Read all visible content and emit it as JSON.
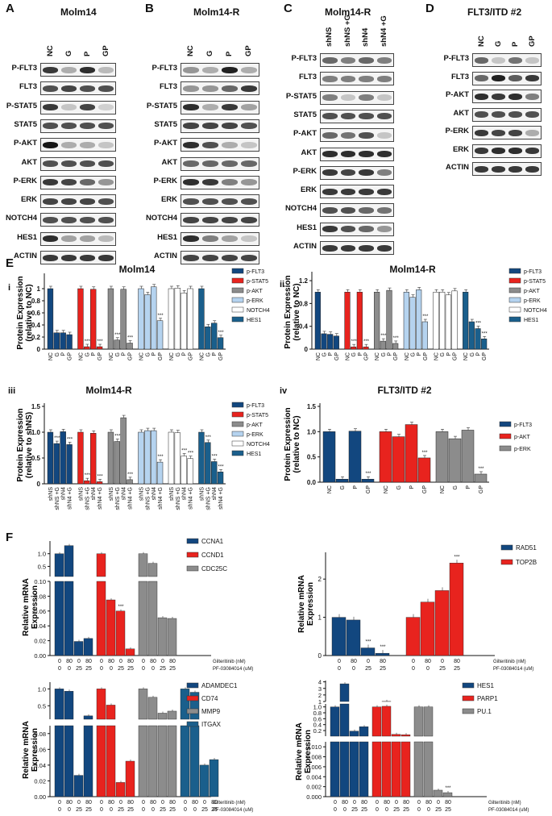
{
  "blots": [
    {
      "id": "A",
      "letter": "A",
      "title": "Molm14",
      "lanes": [
        "NC",
        "G",
        "P",
        "GP"
      ],
      "rows": [
        {
          "label": "P-FLT3",
          "int": [
            0.8,
            0.3,
            0.85,
            0.25
          ]
        },
        {
          "label": "FLT3",
          "int": [
            0.7,
            0.75,
            0.7,
            0.7
          ]
        },
        {
          "label": "P-STAT5",
          "int": [
            0.8,
            0.2,
            0.75,
            0.15
          ]
        },
        {
          "label": "STAT5",
          "int": [
            0.7,
            0.7,
            0.7,
            0.7
          ]
        },
        {
          "label": "P-AKT",
          "int": [
            0.95,
            0.3,
            0.3,
            0.2
          ]
        },
        {
          "label": "AKT",
          "int": [
            0.7,
            0.7,
            0.7,
            0.7
          ]
        },
        {
          "label": "P-ERK",
          "int": [
            0.8,
            0.75,
            0.6,
            0.4
          ]
        },
        {
          "label": "ERK",
          "int": [
            0.75,
            0.75,
            0.75,
            0.7
          ]
        },
        {
          "label": "NOTCH4",
          "int": [
            0.7,
            0.7,
            0.7,
            0.7
          ]
        },
        {
          "label": "HES1",
          "int": [
            0.85,
            0.35,
            0.35,
            0.25
          ]
        },
        {
          "label": "ACTIN",
          "int": [
            0.8,
            0.8,
            0.8,
            0.8
          ]
        }
      ]
    },
    {
      "id": "B",
      "letter": "B",
      "title": "Molm14-R",
      "lanes": [
        "NC",
        "G",
        "P",
        "GP"
      ],
      "rows": [
        {
          "label": "P-FLT3",
          "int": [
            0.4,
            0.3,
            0.9,
            0.3
          ]
        },
        {
          "label": "FLT3",
          "int": [
            0.4,
            0.4,
            0.6,
            0.8
          ]
        },
        {
          "label": "P-STAT5",
          "int": [
            0.85,
            0.3,
            0.8,
            0.35
          ]
        },
        {
          "label": "STAT5",
          "int": [
            0.75,
            0.75,
            0.75,
            0.7
          ]
        },
        {
          "label": "P-AKT",
          "int": [
            0.85,
            0.7,
            0.3,
            0.2
          ]
        },
        {
          "label": "AKT",
          "int": [
            0.6,
            0.6,
            0.6,
            0.6
          ]
        },
        {
          "label": "P-ERK",
          "int": [
            0.85,
            0.8,
            0.5,
            0.4
          ]
        },
        {
          "label": "ERK",
          "int": [
            0.7,
            0.7,
            0.7,
            0.7
          ]
        },
        {
          "label": "NOTCH4",
          "int": [
            0.75,
            0.75,
            0.75,
            0.75
          ]
        },
        {
          "label": "HES1",
          "int": [
            0.85,
            0.5,
            0.35,
            0.2
          ]
        },
        {
          "label": "ACTIN",
          "int": [
            0.75,
            0.75,
            0.75,
            0.75
          ]
        }
      ]
    },
    {
      "id": "C",
      "letter": "C",
      "title": "Molm14-R",
      "lanes": [
        "shNS",
        "shNS +G",
        "shN4",
        "shN4 +G"
      ],
      "rows": [
        {
          "label": "P-FLT3",
          "int": [
            0.6,
            0.5,
            0.6,
            0.5
          ]
        },
        {
          "label": "FLT3",
          "int": [
            0.5,
            0.5,
            0.5,
            0.5
          ]
        },
        {
          "label": "P-STAT5",
          "int": [
            0.5,
            0.2,
            0.5,
            0.2
          ]
        },
        {
          "label": "STAT5",
          "int": [
            0.7,
            0.7,
            0.7,
            0.7
          ]
        },
        {
          "label": "P-AKT",
          "int": [
            0.6,
            0.55,
            0.7,
            0.2
          ]
        },
        {
          "label": "AKT",
          "int": [
            0.85,
            0.85,
            0.85,
            0.85
          ]
        },
        {
          "label": "P-ERK",
          "int": [
            0.8,
            0.75,
            0.8,
            0.5
          ]
        },
        {
          "label": "ERK",
          "int": [
            0.8,
            0.8,
            0.8,
            0.8
          ]
        },
        {
          "label": "NOTCH4",
          "int": [
            0.7,
            0.7,
            0.6,
            0.55
          ]
        },
        {
          "label": "HES1",
          "int": [
            0.8,
            0.7,
            0.6,
            0.4
          ]
        },
        {
          "label": "ACTIN",
          "int": [
            0.8,
            0.8,
            0.8,
            0.8
          ]
        }
      ]
    },
    {
      "id": "D",
      "letter": "D",
      "title": "FLT3/ITD #2",
      "lanes": [
        "NC",
        "G",
        "P",
        "GP"
      ],
      "rows": [
        {
          "label": "P-FLT3",
          "int": [
            0.6,
            0.2,
            0.55,
            0.2
          ]
        },
        {
          "label": "FLT3",
          "int": [
            0.6,
            0.9,
            0.65,
            0.8
          ]
        },
        {
          "label": "P-AKT",
          "int": [
            0.85,
            0.8,
            0.85,
            0.5
          ]
        },
        {
          "label": "AKT",
          "int": [
            0.7,
            0.7,
            0.7,
            0.7
          ]
        },
        {
          "label": "P-ERK",
          "int": [
            0.8,
            0.75,
            0.75,
            0.3
          ]
        },
        {
          "label": "ERK",
          "int": [
            0.8,
            0.85,
            0.85,
            0.8
          ]
        },
        {
          "label": "ACTIN",
          "int": [
            0.8,
            0.8,
            0.8,
            0.8
          ]
        }
      ]
    }
  ],
  "panel_E": {
    "letter": "E"
  },
  "panel_F": {
    "letter": "F"
  },
  "chart_data": [
    {
      "id": "Ei",
      "type": "bar",
      "panel": "i",
      "title": "Molm14",
      "ylabel": "Protein Expression\n(relative to NC)",
      "ylim": [
        0,
        1.2
      ],
      "yticks": [
        "0",
        "0.2",
        "0.4",
        "0.6",
        "0.8",
        "1"
      ],
      "categories": [
        "NC",
        "G",
        "P",
        "GP"
      ],
      "series": [
        {
          "name": "p-FLT3",
          "color": "#12477f",
          "values": [
            1.0,
            0.27,
            0.27,
            0.24
          ],
          "sig": [
            0,
            0,
            0,
            0
          ]
        },
        {
          "name": "p-STAT5",
          "color": "#e8231e",
          "values": [
            1.0,
            0.04,
            0.99,
            0.04
          ],
          "sig": [
            0,
            1,
            0,
            1
          ]
        },
        {
          "name": "p-AKT",
          "color": "#8c8c8c",
          "values": [
            1.0,
            0.15,
            0.99,
            0.1
          ],
          "sig": [
            0,
            1,
            0,
            1
          ]
        },
        {
          "name": "p-ERK",
          "color": "#b5d3ef",
          "values": [
            1.0,
            0.9,
            1.03,
            0.47
          ],
          "sig": [
            0,
            0,
            0,
            1
          ]
        },
        {
          "name": "NOTCH4",
          "color": "#ffffff",
          "values": [
            1.0,
            1.01,
            0.93,
            1.0
          ],
          "sig": [
            0,
            0,
            0,
            0
          ]
        },
        {
          "name": "HES1",
          "color": "#1a5f8c",
          "values": [
            1.0,
            0.37,
            0.43,
            0.19
          ],
          "sig": [
            0,
            0,
            0,
            1
          ]
        }
      ]
    },
    {
      "id": "Eii",
      "type": "bar",
      "panel": "ii",
      "title": "Molm14-R",
      "ylabel": "Protein Expression\n(relative to NC)",
      "ylim": [
        0,
        1.3
      ],
      "yticks": [
        "0",
        "0.4",
        "0.8",
        "1.2"
      ],
      "categories": [
        "NC",
        "G",
        "P",
        "GP"
      ],
      "series": [
        {
          "name": "p-FLT3",
          "color": "#12477f",
          "values": [
            1.0,
            0.27,
            0.26,
            0.23
          ],
          "sig": [
            0,
            0,
            0,
            0
          ]
        },
        {
          "name": "p-STAT5",
          "color": "#e8231e",
          "values": [
            1.0,
            0.04,
            1.0,
            0.04
          ],
          "sig": [
            0,
            1,
            0,
            1
          ]
        },
        {
          "name": "p-AKT",
          "color": "#8c8c8c",
          "values": [
            1.0,
            0.14,
            1.03,
            0.1
          ],
          "sig": [
            0,
            1,
            0,
            1
          ]
        },
        {
          "name": "p-ERK",
          "color": "#b5d3ef",
          "values": [
            1.0,
            0.91,
            1.04,
            0.48
          ],
          "sig": [
            0,
            0,
            0,
            1
          ]
        },
        {
          "name": "NOTCH4",
          "color": "#ffffff",
          "values": [
            1.0,
            1.0,
            0.95,
            1.02
          ],
          "sig": [
            0,
            0,
            0,
            0
          ]
        },
        {
          "name": "HES1",
          "color": "#1a5f8c",
          "values": [
            1.0,
            0.48,
            0.36,
            0.18
          ],
          "sig": [
            0,
            0,
            1,
            1
          ]
        }
      ]
    },
    {
      "id": "Eiii",
      "type": "bar",
      "panel": "iii",
      "title": "Molm14-R",
      "ylabel": "Protein Expression\n(relative to shNS)",
      "ylim": [
        0,
        1.5
      ],
      "yticks": [
        "0",
        "0.5",
        "1.0",
        "1.5"
      ],
      "categories": [
        "shNS",
        "shNS +G",
        "shN4",
        "shN4 +G"
      ],
      "series": [
        {
          "name": "p-FLT3",
          "color": "#12477f",
          "values": [
            1.0,
            0.78,
            1.01,
            0.76
          ],
          "sig": [
            0,
            1,
            0,
            1
          ]
        },
        {
          "name": "p-STAT5",
          "color": "#e8231e",
          "values": [
            1.0,
            0.06,
            0.98,
            0.04
          ],
          "sig": [
            0,
            1,
            0,
            1
          ]
        },
        {
          "name": "p-AKT",
          "color": "#8c8c8c",
          "values": [
            1.0,
            0.82,
            1.28,
            0.08
          ],
          "sig": [
            0,
            1,
            0,
            1
          ]
        },
        {
          "name": "p-ERK",
          "color": "#b5d3ef",
          "values": [
            1.0,
            1.03,
            1.03,
            0.42
          ],
          "sig": [
            0,
            0,
            0,
            1
          ]
        },
        {
          "name": "NOTCH4",
          "color": "#ffffff",
          "values": [
            1.0,
            0.99,
            0.54,
            0.49
          ],
          "sig": [
            0,
            0,
            1,
            1
          ]
        },
        {
          "name": "HES1",
          "color": "#1a5f8c",
          "values": [
            1.0,
            0.8,
            0.43,
            0.23
          ],
          "sig": [
            0,
            1,
            1,
            1
          ]
        }
      ]
    },
    {
      "id": "Eiv",
      "type": "bar",
      "panel": "iv",
      "title": "FLT3/ITD #2",
      "ylabel": "Protein Expression\n(relative to NC)",
      "ylim": [
        0,
        1.5
      ],
      "yticks": [
        "0.0",
        "0.5",
        "1.0",
        "1.5"
      ],
      "categories": [
        "NC",
        "G",
        "P",
        "GP"
      ],
      "series": [
        {
          "name": "p-FLT3",
          "color": "#12477f",
          "values": [
            1.0,
            0.06,
            1.01,
            0.06
          ],
          "sig": [
            0,
            0,
            0,
            1
          ]
        },
        {
          "name": "p-AKT",
          "color": "#e8231e",
          "values": [
            1.0,
            0.9,
            1.14,
            0.48
          ],
          "sig": [
            0,
            0,
            0,
            1
          ]
        },
        {
          "name": "p-ERK",
          "color": "#8c8c8c",
          "values": [
            1.0,
            0.86,
            1.03,
            0.16
          ],
          "sig": [
            0,
            0,
            0,
            1
          ]
        }
      ]
    },
    {
      "id": "F1",
      "type": "bar",
      "panel": "F1",
      "ylabel": "Relative mRNA\nExpression",
      "broken": true,
      "yticks_top": [
        "1.0",
        "0.5"
      ],
      "yticks_bottom": [
        "0.10",
        "0.08",
        "0.06",
        "0.04",
        "0.02",
        "0.00"
      ],
      "xrows": {
        "label1": "Gilteritinib (nM)",
        "label2": "PF-03084014 (uM)",
        "row1": [
          "0",
          "80",
          "0",
          "80"
        ],
        "row2": [
          "0",
          "0",
          "25",
          "25"
        ]
      },
      "series": [
        {
          "name": "CCNA1",
          "color": "#12477f",
          "values": [
            1.0,
            1.32,
            0.019,
            0.023
          ],
          "sig": [
            0,
            0,
            0,
            0
          ]
        },
        {
          "name": "CCND1",
          "color": "#e8231e",
          "values": [
            1.0,
            0.075,
            0.06,
            0.009
          ],
          "sig": [
            0,
            0,
            1,
            0
          ]
        },
        {
          "name": "CDC25C",
          "color": "#8c8c8c",
          "values": [
            1.0,
            0.62,
            0.051,
            0.05
          ],
          "sig": [
            0,
            0,
            0,
            0
          ]
        }
      ]
    },
    {
      "id": "F2",
      "type": "bar",
      "panel": "F2",
      "ylabel": "Relative mRNA\nExpression",
      "ylim": [
        0,
        2.7
      ],
      "yticks": [
        "0",
        "1",
        "2"
      ],
      "xrows": {
        "label1": "Gilteritinib (nM)",
        "label2": "PF-03084014 (uM)",
        "row1": [
          "0",
          "80",
          "0",
          "80"
        ],
        "row2": [
          "0",
          "0",
          "25",
          "25"
        ]
      },
      "series": [
        {
          "name": "RAD51",
          "color": "#12477f",
          "values": [
            1.0,
            0.93,
            0.2,
            0.06
          ],
          "sig": [
            0,
            0,
            1,
            1
          ]
        },
        {
          "name": "TOP2B",
          "color": "#e8231e",
          "values": [
            1.0,
            1.4,
            1.7,
            2.42
          ],
          "sig": [
            0,
            0,
            0,
            1
          ]
        }
      ]
    },
    {
      "id": "F3",
      "type": "bar",
      "panel": "F3",
      "ylabel": "Relative mRNA\nExpression",
      "broken": true,
      "yticks_top": [
        "1.0",
        "0.5"
      ],
      "yticks_bottom": [
        "0.08",
        "0.06",
        "0.04",
        "0.02",
        "0.00"
      ],
      "xrows": {
        "label1": "Gilteritinib (nM)",
        "label2": "PF-03084014 (uM)",
        "row1": [
          "0",
          "80",
          "0",
          "80"
        ],
        "row2": [
          "0",
          "0",
          "25",
          "25"
        ]
      },
      "series": [
        {
          "name": "ADAMDEC1",
          "color": "#12477f",
          "values": [
            1.0,
            0.93,
            0.027,
            0.2
          ],
          "sig": [
            0,
            0,
            0,
            0
          ]
        },
        {
          "name": "CD74",
          "color": "#e8231e",
          "values": [
            1.0,
            0.52,
            0.018,
            0.045
          ],
          "sig": [
            0,
            0,
            0,
            0
          ]
        },
        {
          "name": "MMP9",
          "color": "#8c8c8c",
          "values": [
            1.0,
            0.75,
            0.28,
            0.34
          ],
          "sig": [
            0,
            0,
            0,
            0
          ]
        },
        {
          "name": "ITGAX",
          "color": "#1a5f8c",
          "values": [
            1.0,
            0.9,
            0.04,
            0.047
          ],
          "sig": [
            0,
            0,
            0,
            0
          ]
        }
      ]
    },
    {
      "id": "F4",
      "type": "bar",
      "panel": "F4",
      "ylabel": "Relative mRNA\nExpression",
      "broken": true,
      "yticks_top": [
        "4",
        "3",
        "2",
        "1"
      ],
      "yticks_mid": [
        "1.0",
        "0.8",
        "0.6",
        "0.4",
        "0.2"
      ],
      "yticks_bottom": [
        "0.010",
        "0.008",
        "0.006",
        "0.004",
        "0.002",
        "0.000"
      ],
      "xrows": {
        "label1": "Gilteritinib (nM)",
        "label2": "PF-03084014 (uM)",
        "row1": [
          "0",
          "80",
          "0",
          "80"
        ],
        "row2": [
          "0",
          "0",
          "25",
          "25"
        ]
      },
      "series": [
        {
          "name": "HES1",
          "color": "#12477f",
          "values": [
            1.0,
            3.7,
            0.18,
            0.33
          ],
          "sig": [
            0,
            0,
            0,
            0
          ]
        },
        {
          "name": "PARP1",
          "color": "#e8231e",
          "values": [
            1.0,
            1.02,
            0.07,
            0.06
          ],
          "sig": [
            0,
            0,
            0,
            0
          ]
        },
        {
          "name": "PU.1",
          "color": "#8c8c8c",
          "values": [
            1.0,
            1.0,
            0.0013,
            0.0008
          ],
          "sig": [
            0,
            0,
            0,
            1
          ]
        }
      ]
    }
  ]
}
